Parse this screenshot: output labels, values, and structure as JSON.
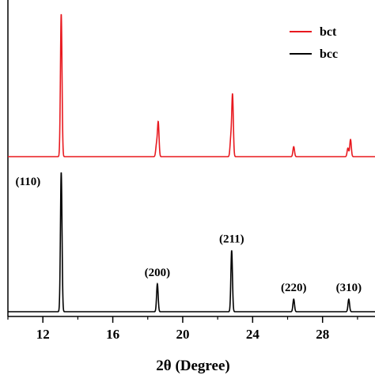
{
  "chart_data": {
    "type": "line",
    "xlabel": "2θ (Degree)",
    "ylabel": "",
    "xlim": [
      10,
      31
    ],
    "x_ticks": [
      12,
      16,
      20,
      24,
      28
    ],
    "y_ticks_shown": false,
    "legend_position": "top-right",
    "series": [
      {
        "name": "bct",
        "color": "#e8191f",
        "baseline": 0,
        "peaks": [
          {
            "x": 13.05,
            "y": 1.0
          },
          {
            "x": 18.5,
            "y": 0.08
          },
          {
            "x": 18.6,
            "y": 0.24
          },
          {
            "x": 22.75,
            "y": 0.12
          },
          {
            "x": 22.85,
            "y": 0.43
          },
          {
            "x": 26.35,
            "y": 0.07
          },
          {
            "x": 29.45,
            "y": 0.06
          },
          {
            "x": 29.6,
            "y": 0.12
          }
        ]
      },
      {
        "name": "bcc",
        "color": "#000000",
        "baseline": 0,
        "peaks": [
          {
            "x": 13.05,
            "y": 1.0,
            "label": "(110)"
          },
          {
            "x": 18.55,
            "y": 0.2,
            "label": "(200)"
          },
          {
            "x": 22.8,
            "y": 0.44,
            "label": "(211)"
          },
          {
            "x": 26.35,
            "y": 0.09,
            "label": "(220)"
          },
          {
            "x": 29.5,
            "y": 0.09,
            "label": "(310)"
          }
        ]
      }
    ]
  }
}
